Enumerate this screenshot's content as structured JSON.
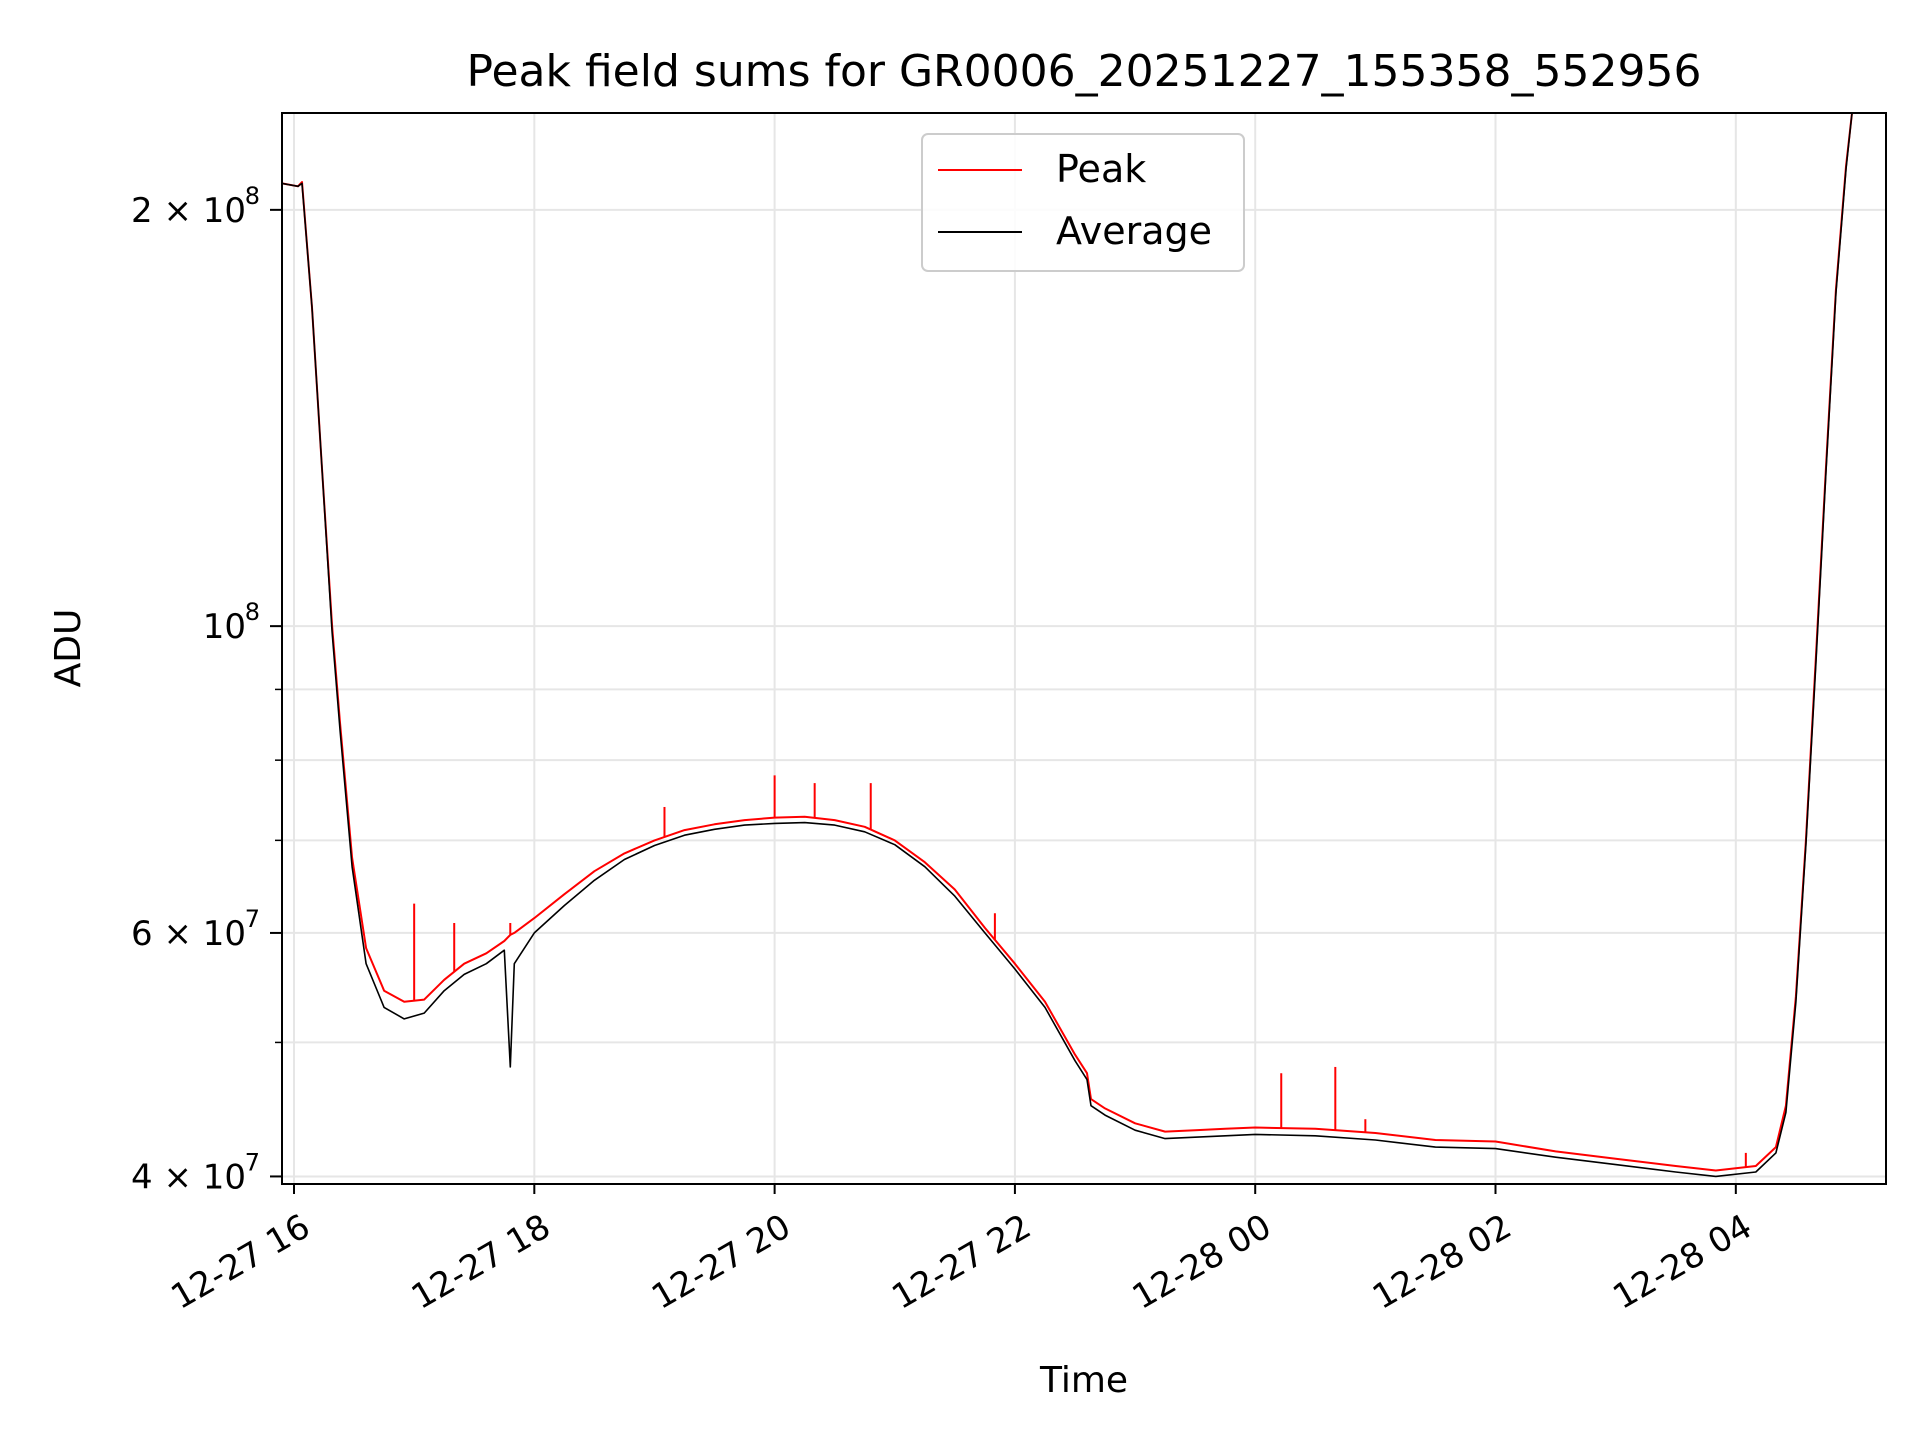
{
  "chart_data": {
    "type": "line",
    "title": "Peak field sums for GR0006_20251227_155358_552956",
    "xlabel": "Time",
    "ylabel": "ADU",
    "yscale": "log",
    "xlim": [
      "2025-12-27 15:54",
      "2025-12-28 05:15"
    ],
    "ylim": [
      39500000,
      235000000
    ],
    "grid": true,
    "legend_position": "top-center",
    "xticks": [
      {
        "t": "2025-12-27 16:00",
        "label": "12-27 16"
      },
      {
        "t": "2025-12-27 18:00",
        "label": "12-27 18"
      },
      {
        "t": "2025-12-27 20:00",
        "label": "12-27 20"
      },
      {
        "t": "2025-12-27 22:00",
        "label": "12-27 22"
      },
      {
        "t": "2025-12-28 00:00",
        "label": "12-28 00"
      },
      {
        "t": "2025-12-28 02:00",
        "label": "12-28 02"
      },
      {
        "t": "2025-12-28 04:00",
        "label": "12-28 04"
      }
    ],
    "yticks_major": [
      {
        "value": 40000000,
        "label": "4 × 10",
        "exp": "7"
      },
      {
        "value": 60000000,
        "label": "6 × 10",
        "exp": "7"
      },
      {
        "value": 100000000,
        "label": "10",
        "exp": "8"
      },
      {
        "value": 200000000,
        "label": "2 × 10",
        "exp": "8"
      }
    ],
    "yticks_minor": [
      50000000,
      70000000,
      80000000,
      90000000
    ],
    "series": [
      {
        "name": "Peak",
        "color": "#ff0000",
        "points": [
          [
            "2025-12-27 15:54",
            209000000
          ],
          [
            "2025-12-27 16:02",
            208000000
          ],
          [
            "2025-12-27 16:04",
            209500000
          ],
          [
            "2025-12-27 16:09",
            170000000
          ],
          [
            "2025-12-27 16:14",
            130000000
          ],
          [
            "2025-12-27 16:19",
            100000000
          ],
          [
            "2025-12-27 16:23",
            85000000
          ],
          [
            "2025-12-27 16:29",
            68000000
          ],
          [
            "2025-12-27 16:36",
            58500000
          ],
          [
            "2025-12-27 16:45",
            54500000
          ],
          [
            "2025-12-27 16:55",
            53500000
          ],
          [
            "2025-12-27 17:05",
            53700000
          ],
          [
            "2025-12-27 17:15",
            55500000
          ],
          [
            "2025-12-27 17:25",
            57000000
          ],
          [
            "2025-12-27 17:36",
            58000000
          ],
          [
            "2025-12-27 17:45",
            59200000
          ],
          [
            "2025-12-27 17:48",
            59800000
          ],
          [
            "2025-12-27 17:50",
            60000000
          ],
          [
            "2025-12-27 18:00",
            61500000
          ],
          [
            "2025-12-27 18:15",
            64000000
          ],
          [
            "2025-12-27 18:30",
            66500000
          ],
          [
            "2025-12-27 18:45",
            68500000
          ],
          [
            "2025-12-27 19:00",
            70000000
          ],
          [
            "2025-12-27 19:15",
            71200000
          ],
          [
            "2025-12-27 19:30",
            71900000
          ],
          [
            "2025-12-27 19:45",
            72400000
          ],
          [
            "2025-12-27 20:00",
            72700000
          ],
          [
            "2025-12-27 20:15",
            72800000
          ],
          [
            "2025-12-27 20:30",
            72400000
          ],
          [
            "2025-12-27 20:45",
            71600000
          ],
          [
            "2025-12-27 21:00",
            70000000
          ],
          [
            "2025-12-27 21:15",
            67500000
          ],
          [
            "2025-12-27 21:30",
            64500000
          ],
          [
            "2025-12-27 21:45",
            60500000
          ],
          [
            "2025-12-27 22:00",
            57000000
          ],
          [
            "2025-12-27 22:15",
            53500000
          ],
          [
            "2025-12-27 22:30",
            49000000
          ],
          [
            "2025-12-27 22:36",
            47500000
          ],
          [
            "2025-12-27 22:38",
            45500000
          ],
          [
            "2025-12-27 22:45",
            44800000
          ],
          [
            "2025-12-27 23:00",
            43700000
          ],
          [
            "2025-12-27 23:15",
            43100000
          ],
          [
            "2025-12-27 23:30",
            43200000
          ],
          [
            "2025-12-27 23:45",
            43300000
          ],
          [
            "2025-12-28 00:00",
            43400000
          ],
          [
            "2025-12-28 00:30",
            43300000
          ],
          [
            "2025-12-28 01:00",
            43000000
          ],
          [
            "2025-12-28 01:30",
            42500000
          ],
          [
            "2025-12-28 02:00",
            42400000
          ],
          [
            "2025-12-28 02:30",
            41700000
          ],
          [
            "2025-12-28 03:00",
            41200000
          ],
          [
            "2025-12-28 03:30",
            40700000
          ],
          [
            "2025-12-28 03:50",
            40400000
          ],
          [
            "2025-12-28 04:10",
            40700000
          ],
          [
            "2025-12-28 04:20",
            42000000
          ],
          [
            "2025-12-28 04:25",
            45000000
          ],
          [
            "2025-12-28 04:30",
            54000000
          ],
          [
            "2025-12-28 04:35",
            70000000
          ],
          [
            "2025-12-28 04:40",
            95000000
          ],
          [
            "2025-12-28 04:45",
            130000000
          ],
          [
            "2025-12-28 04:50",
            175000000
          ],
          [
            "2025-12-28 04:55",
            215000000
          ],
          [
            "2025-12-28 04:58",
            235000000
          ]
        ]
      },
      {
        "name": "Average",
        "color": "#000000",
        "points": [
          [
            "2025-12-27 15:54",
            209000000
          ],
          [
            "2025-12-27 16:02",
            208000000
          ],
          [
            "2025-12-27 16:04",
            209000000
          ],
          [
            "2025-12-27 16:09",
            170000000
          ],
          [
            "2025-12-27 16:14",
            130000000
          ],
          [
            "2025-12-27 16:19",
            99000000
          ],
          [
            "2025-12-27 16:23",
            84000000
          ],
          [
            "2025-12-27 16:29",
            67000000
          ],
          [
            "2025-12-27 16:36",
            57000000
          ],
          [
            "2025-12-27 16:45",
            53000000
          ],
          [
            "2025-12-27 16:55",
            52000000
          ],
          [
            "2025-12-27 17:05",
            52500000
          ],
          [
            "2025-12-27 17:15",
            54500000
          ],
          [
            "2025-12-27 17:25",
            56000000
          ],
          [
            "2025-12-27 17:36",
            57000000
          ],
          [
            "2025-12-27 17:45",
            58300000
          ],
          [
            "2025-12-27 17:48",
            48000000
          ],
          [
            "2025-12-27 17:50",
            57000000
          ],
          [
            "2025-12-27 18:00",
            60000000
          ],
          [
            "2025-12-27 18:15",
            62800000
          ],
          [
            "2025-12-27 18:30",
            65500000
          ],
          [
            "2025-12-27 18:45",
            67800000
          ],
          [
            "2025-12-27 19:00",
            69400000
          ],
          [
            "2025-12-27 19:15",
            70600000
          ],
          [
            "2025-12-27 19:30",
            71300000
          ],
          [
            "2025-12-27 19:45",
            71800000
          ],
          [
            "2025-12-27 20:00",
            72000000
          ],
          [
            "2025-12-27 20:15",
            72100000
          ],
          [
            "2025-12-27 20:30",
            71800000
          ],
          [
            "2025-12-27 20:45",
            71000000
          ],
          [
            "2025-12-27 21:00",
            69500000
          ],
          [
            "2025-12-27 21:15",
            67000000
          ],
          [
            "2025-12-27 21:30",
            63800000
          ],
          [
            "2025-12-27 21:45",
            60000000
          ],
          [
            "2025-12-27 22:00",
            56500000
          ],
          [
            "2025-12-27 22:15",
            53000000
          ],
          [
            "2025-12-27 22:30",
            48500000
          ],
          [
            "2025-12-27 22:36",
            47000000
          ],
          [
            "2025-12-27 22:38",
            45000000
          ],
          [
            "2025-12-27 22:45",
            44300000
          ],
          [
            "2025-12-27 23:00",
            43200000
          ],
          [
            "2025-12-27 23:15",
            42600000
          ],
          [
            "2025-12-27 23:30",
            42700000
          ],
          [
            "2025-12-27 23:45",
            42800000
          ],
          [
            "2025-12-28 00:00",
            42900000
          ],
          [
            "2025-12-28 00:30",
            42800000
          ],
          [
            "2025-12-28 01:00",
            42500000
          ],
          [
            "2025-12-28 01:30",
            42000000
          ],
          [
            "2025-12-28 02:00",
            41900000
          ],
          [
            "2025-12-28 02:30",
            41300000
          ],
          [
            "2025-12-28 03:00",
            40800000
          ],
          [
            "2025-12-28 03:30",
            40300000
          ],
          [
            "2025-12-28 03:50",
            40000000
          ],
          [
            "2025-12-28 04:10",
            40300000
          ],
          [
            "2025-12-28 04:20",
            41600000
          ],
          [
            "2025-12-28 04:25",
            44500000
          ],
          [
            "2025-12-28 04:30",
            53500000
          ],
          [
            "2025-12-28 04:35",
            69500000
          ],
          [
            "2025-12-28 04:40",
            94000000
          ],
          [
            "2025-12-28 04:45",
            129000000
          ],
          [
            "2025-12-28 04:50",
            174000000
          ],
          [
            "2025-12-28 04:55",
            214000000
          ],
          [
            "2025-12-28 04:58",
            235000000
          ]
        ]
      }
    ],
    "peak_spikes": [
      [
        "2025-12-27 17:00",
        63000000
      ],
      [
        "2025-12-27 17:20",
        61000000
      ],
      [
        "2025-12-27 17:48",
        61000000
      ],
      [
        "2025-12-27 19:05",
        74000000
      ],
      [
        "2025-12-27 20:00",
        78000000
      ],
      [
        "2025-12-27 20:20",
        77000000
      ],
      [
        "2025-12-27 20:48",
        77000000
      ],
      [
        "2025-12-27 21:50",
        62000000
      ],
      [
        "2025-12-28 00:13",
        47500000
      ],
      [
        "2025-12-28 00:40",
        48000000
      ],
      [
        "2025-12-28 00:55",
        44000000
      ],
      [
        "2025-12-28 04:05",
        41600000
      ]
    ]
  }
}
